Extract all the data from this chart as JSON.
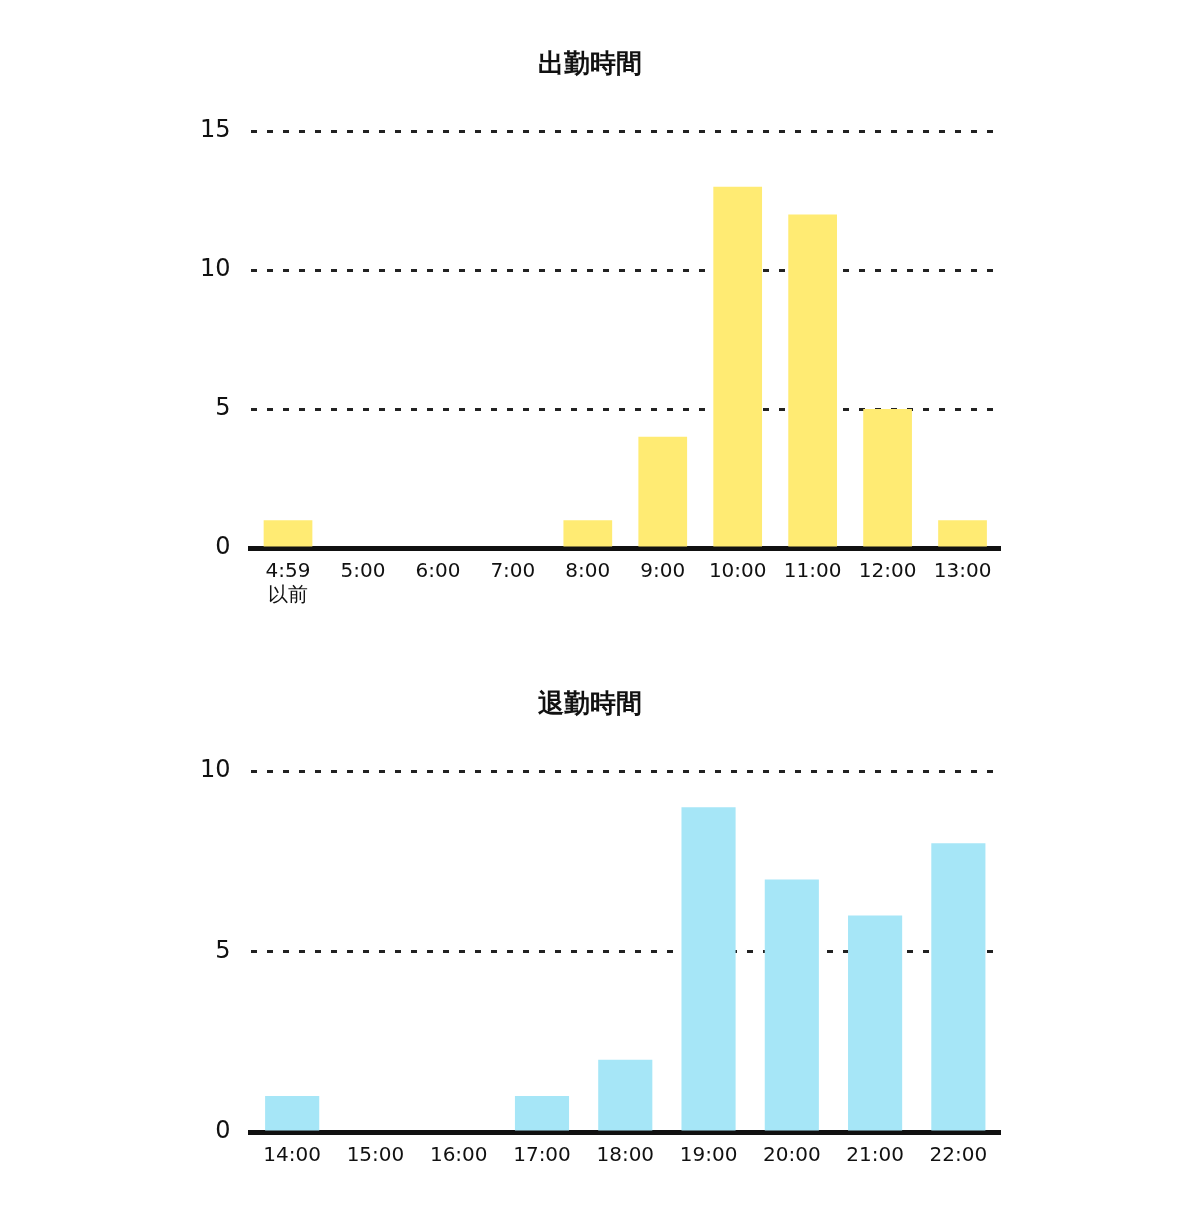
{
  "chart_data": [
    {
      "type": "bar",
      "title": "出勤時間",
      "categories": [
        "4:59\n以前",
        "5:00",
        "6:00",
        "7:00",
        "8:00",
        "9:00",
        "10:00",
        "11:00",
        "12:00",
        "13:00"
      ],
      "values": [
        1,
        0,
        0,
        0,
        1,
        4,
        13,
        12,
        5,
        1
      ],
      "color": "#ffeb73",
      "ylim": [
        0,
        15
      ],
      "yticks": [
        0,
        5,
        10,
        15
      ],
      "grid": "y",
      "legend": false
    },
    {
      "type": "bar",
      "title": "退勤時間",
      "categories": [
        "14:00",
        "15:00",
        "16:00",
        "17:00",
        "18:00",
        "19:00",
        "20:00",
        "21:00",
        "22:00"
      ],
      "values": [
        1,
        0,
        0,
        1,
        2,
        9,
        7,
        6,
        8
      ],
      "color": "#a6e6f7",
      "ylim": [
        0,
        10
      ],
      "yticks": [
        0,
        5,
        10
      ],
      "grid": "y",
      "legend": false
    }
  ]
}
